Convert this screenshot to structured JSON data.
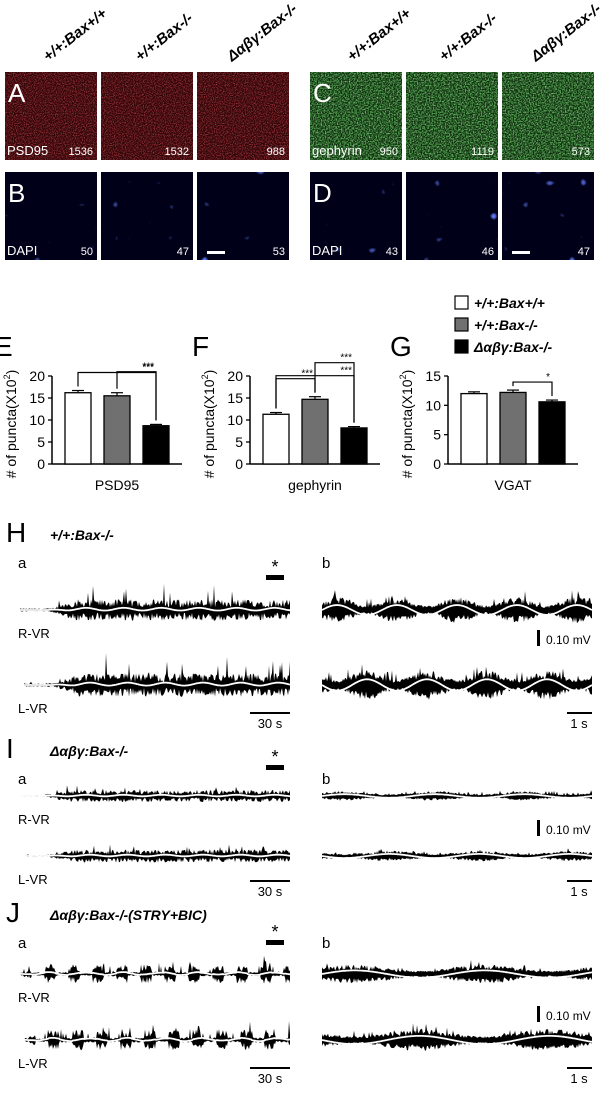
{
  "micro": {
    "genotypes": [
      "+/+:Bax+/+",
      "+/+:Bax-/-",
      "Δαβγ:Bax-/-"
    ],
    "left_panels": {
      "top_letter": "A",
      "top_marker": "PSD95",
      "top_counts": [
        "1536",
        "1532",
        "988"
      ],
      "bottom_letter": "B",
      "bottom_marker": "DAPI",
      "bottom_counts": [
        "50",
        "47",
        "53"
      ],
      "top_color": "#8a0f14",
      "bottom_color": "#0c1aa8"
    },
    "right_panels": {
      "top_letter": "C",
      "top_marker": "gephyrin",
      "top_counts": [
        "950",
        "1119",
        "573"
      ],
      "bottom_letter": "D",
      "bottom_marker": "DAPI",
      "bottom_counts": [
        "43",
        "46",
        "47"
      ],
      "top_color": "#2f8a2a",
      "bottom_color": "#0c1aa8"
    }
  },
  "bar_panels": {
    "E": {
      "letter": "E",
      "ylabel": "# of puncta(X10",
      "ylabel_exp": "2",
      "ylabel_close": ")",
      "xlabel": "PSD95"
    },
    "F": {
      "letter": "F",
      "ylabel": "# of puncta(X10",
      "ylabel_exp": "2",
      "ylabel_close": ")",
      "xlabel": "gephyrin"
    },
    "G": {
      "letter": "G",
      "ylabel": "# of puncta(X10",
      "ylabel_exp": "2",
      "ylabel_close": ")",
      "xlabel": "VGAT"
    }
  },
  "legend": [
    "+/+:Bax+/+",
    "+/+:Bax-/-",
    "Δαβγ:Bax-/-"
  ],
  "chart_data": [
    {
      "type": "bar",
      "panel": "E",
      "title": "",
      "categories": [
        "+/+:Bax+/+",
        "+/+:Bax-/-",
        "Δαβγ:Bax-/-"
      ],
      "values": [
        16.2,
        15.5,
        8.7
      ],
      "errors": [
        0.5,
        0.7,
        0.3
      ],
      "colors": [
        "#ffffff",
        "#707070",
        "#000000"
      ],
      "xlabel": "PSD95",
      "ylabel": "# of puncta(X10^2)",
      "ylim": [
        0,
        20
      ],
      "yticks": [
        0,
        5,
        10,
        15,
        20
      ],
      "significance": [
        {
          "from": 0,
          "to": 2,
          "label": "***"
        },
        {
          "from": 1,
          "to": 2,
          "label": "***"
        }
      ]
    },
    {
      "type": "bar",
      "panel": "F",
      "title": "",
      "categories": [
        "+/+:Bax+/+",
        "+/+:Bax-/-",
        "Δαβγ:Bax-/-"
      ],
      "values": [
        11.3,
        14.7,
        8.2
      ],
      "errors": [
        0.4,
        0.6,
        0.3
      ],
      "colors": [
        "#ffffff",
        "#707070",
        "#000000"
      ],
      "xlabel": "gephyrin",
      "ylabel": "# of puncta(X10^2)",
      "ylim": [
        0,
        20
      ],
      "yticks": [
        0,
        5,
        10,
        15,
        20
      ],
      "significance": [
        {
          "from": 0,
          "to": 1,
          "label": "***"
        },
        {
          "from": 0,
          "to": 2,
          "label": "***"
        },
        {
          "from": 1,
          "to": 2,
          "label": "***"
        }
      ]
    },
    {
      "type": "bar",
      "panel": "G",
      "title": "",
      "categories": [
        "+/+:Bax+/+",
        "+/+:Bax-/-",
        "Δαβγ:Bax-/-"
      ],
      "values": [
        12.0,
        12.2,
        10.6
      ],
      "errors": [
        0.3,
        0.4,
        0.3
      ],
      "colors": [
        "#ffffff",
        "#707070",
        "#000000"
      ],
      "xlabel": "VGAT",
      "ylabel": "# of puncta(X10^2)",
      "ylim": [
        0,
        15
      ],
      "yticks": [
        0,
        5,
        10,
        15
      ],
      "significance": [
        {
          "from": 1,
          "to": 2,
          "label": "*"
        }
      ]
    }
  ],
  "traces": {
    "H": {
      "letter": "H",
      "genotype": "+/+:Bax-/-",
      "sub_a": "a",
      "sub_b": "b",
      "r_label": "R-VR",
      "l_label": "L-VR",
      "asterisk": "*",
      "time_a": "30 s",
      "time_b": "1 s",
      "voltage": "0.10 mV"
    },
    "I": {
      "letter": "I",
      "genotype": "Δαβγ:Bax-/-",
      "sub_a": "a",
      "sub_b": "b",
      "r_label": "R-VR",
      "l_label": "L-VR",
      "asterisk": "*",
      "time_a": "30 s",
      "time_b": "1 s",
      "voltage": "0.10 mV"
    },
    "J": {
      "letter": "J",
      "genotype": "Δαβγ:Bax-/-(STRY+BIC)",
      "sub_a": "a",
      "sub_b": "b",
      "r_label": "R-VR",
      "l_label": "L-VR",
      "asterisk": "*",
      "time_a": "30 s",
      "time_b": "1 s",
      "voltage": "0.10 mV"
    }
  }
}
